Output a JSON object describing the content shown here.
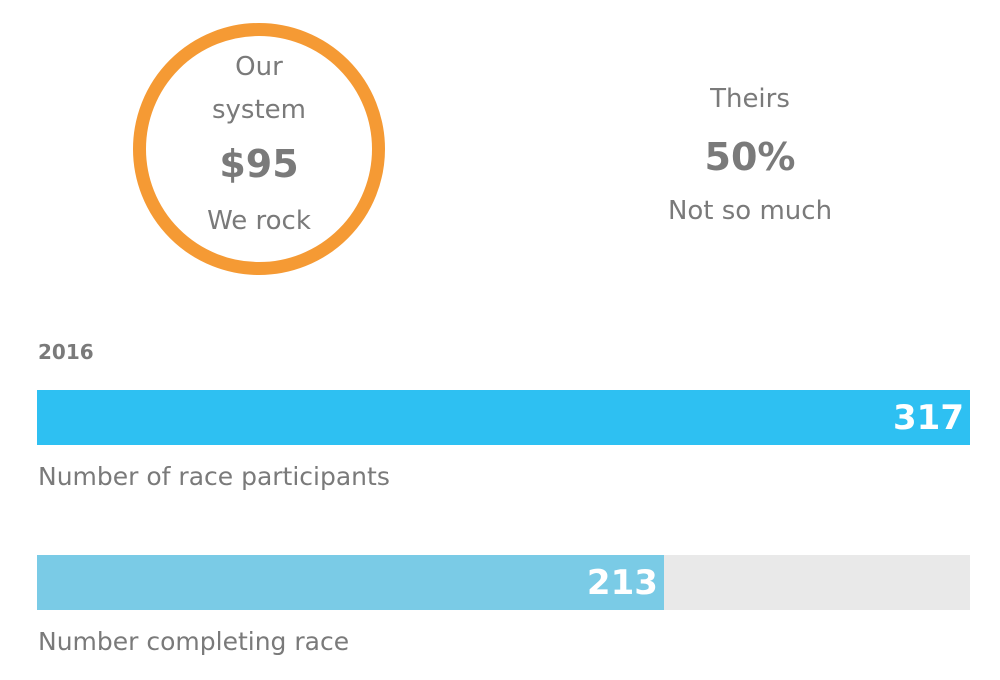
{
  "ours": {
    "line1": "Our",
    "line2": "system",
    "value": "$95",
    "caption": "We rock",
    "ring_color": "#f59a34"
  },
  "theirs": {
    "label": "Theirs",
    "value": "50%",
    "caption": "Not so much"
  },
  "year": "2016",
  "bars": [
    {
      "value": 317,
      "display": "317",
      "label": "Number of race participants",
      "max": 317,
      "color": "#2ec0f2"
    },
    {
      "value": 213,
      "display": "213",
      "label": "Number completing race",
      "max": 317,
      "color": "#7acbe6"
    }
  ]
}
